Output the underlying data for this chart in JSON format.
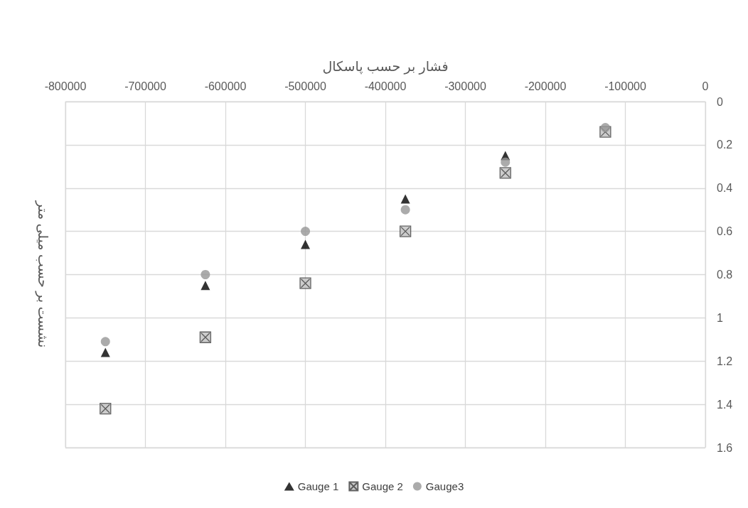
{
  "chart_data": {
    "type": "scatter",
    "xlabel": "فشار بر حسب پاسکال",
    "ylabel": "نشست بر حسب میلی متر",
    "x": [
      -750000,
      -625000,
      -500000,
      -375000,
      -250000,
      -125000
    ],
    "series": [
      {
        "name": "Gauge 1",
        "color": "#000000",
        "marker": "triangle",
        "values": [
          1.16,
          0.85,
          0.66,
          0.45,
          0.25,
          null
        ]
      },
      {
        "name": "Gauge 2",
        "color": "#bfbfbf",
        "marker": "cross",
        "values": [
          1.42,
          1.09,
          0.84,
          0.6,
          0.33,
          0.14
        ]
      },
      {
        "name": "Gauge3",
        "color": "#969696",
        "marker": "circle",
        "values": [
          1.11,
          0.8,
          0.6,
          0.5,
          0.28,
          0.12
        ]
      }
    ],
    "xlim": [
      -800000,
      0
    ],
    "xticks": [
      -800000,
      -700000,
      -600000,
      -500000,
      -400000,
      -300000,
      -200000,
      -100000,
      0
    ],
    "ylim": [
      1.6,
      0
    ],
    "yticks": [
      0,
      0.2,
      0.4,
      0.6,
      0.8,
      1,
      1.2,
      1.4,
      1.6
    ],
    "grid": true,
    "legend": "bottom"
  }
}
